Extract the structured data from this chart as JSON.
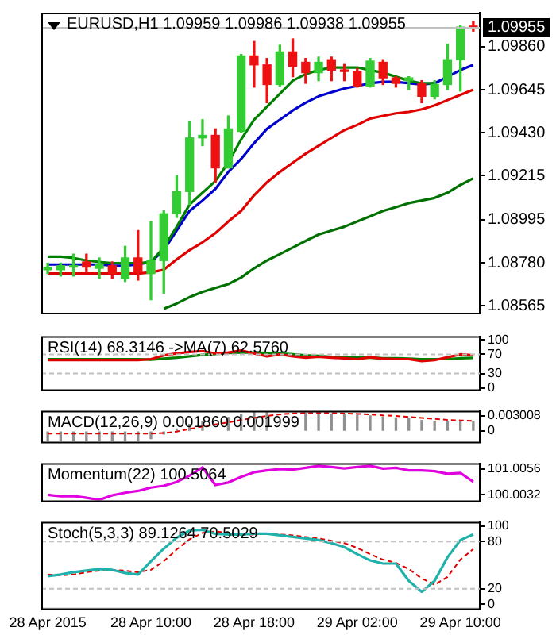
{
  "chart_data": [
    {
      "type": "candlestick",
      "title": "EURUSD,H1 1.09959 1.09986 1.09938 1.09955",
      "ohlc": [
        [
          1.08745,
          1.08778,
          1.08726,
          1.08758
        ],
        [
          1.08745,
          1.08778,
          1.08713,
          1.08765
        ],
        [
          1.08758,
          1.08823,
          1.08713,
          1.08765
        ],
        [
          1.08784,
          1.08823,
          1.08732,
          1.08758
        ],
        [
          1.08752,
          1.08804,
          1.087,
          1.08771
        ],
        [
          1.08765,
          1.08784,
          1.087,
          1.08726
        ],
        [
          1.087,
          1.08862,
          1.08686,
          1.08804
        ],
        [
          1.08804,
          1.08941,
          1.08693,
          1.08732
        ],
        [
          1.08726,
          1.08986,
          1.08595,
          1.08791
        ],
        [
          1.08791,
          1.09039,
          1.08628,
          1.09025
        ],
        [
          1.09025,
          1.09215,
          1.09006,
          1.09136
        ],
        [
          1.09136,
          1.09488,
          1.09071,
          1.09404
        ],
        [
          1.09404,
          1.09495,
          1.09365,
          1.09417
        ],
        [
          1.09417,
          1.09449,
          1.09182,
          1.09254
        ],
        [
          1.09254,
          1.09514,
          1.09254,
          1.09449
        ],
        [
          1.09436,
          1.09821,
          1.0943,
          1.09814
        ],
        [
          1.09814,
          1.09886,
          1.09658,
          1.09769
        ],
        [
          1.09769,
          1.09801,
          1.0958,
          1.09671
        ],
        [
          1.09671,
          1.09867,
          1.09664,
          1.09834
        ],
        [
          1.09834,
          1.09899,
          1.0971,
          1.09762
        ],
        [
          1.09782,
          1.09801,
          1.09677,
          1.0973
        ],
        [
          1.0973,
          1.09808,
          1.0969,
          1.09782
        ],
        [
          1.09795,
          1.09808,
          1.0969,
          1.09743
        ],
        [
          1.09743,
          1.09775,
          1.0969,
          1.09736
        ],
        [
          1.09736,
          1.0975,
          1.09658,
          1.09664
        ],
        [
          1.09664,
          1.09801,
          1.09658,
          1.09788
        ],
        [
          1.09782,
          1.09795,
          1.09671,
          1.09704
        ],
        [
          1.09704,
          1.0971,
          1.09658,
          1.09677
        ],
        [
          1.0969,
          1.0971,
          1.09645,
          1.09704
        ],
        [
          1.09677,
          1.0969,
          1.0958,
          1.09612
        ],
        [
          1.09612,
          1.0969,
          1.09599,
          1.09671
        ],
        [
          1.09671,
          1.09873,
          1.09645,
          1.09795
        ],
        [
          1.09795,
          1.09964,
          1.09638,
          1.09958
        ],
        [
          1.09959,
          1.09986,
          1.09938,
          1.09955
        ]
      ],
      "colors": [
        "#33cc33",
        "#33cc33",
        "#33cc33",
        "#ee1111",
        "#33cc33",
        "#ee1111",
        "#33cc33",
        "#ee1111",
        "#33cc33",
        "#33cc33",
        "#33cc33",
        "#33cc33",
        "#33cc33",
        "#ee1111",
        "#33cc33",
        "#33cc33",
        "#ee1111",
        "#ee1111",
        "#33cc33",
        "#ee1111",
        "#ee1111",
        "#33cc33",
        "#ee1111",
        "#ee1111",
        "#ee1111",
        "#33cc33",
        "#ee1111",
        "#ee1111",
        "#33cc33",
        "#ee1111",
        "#33cc33",
        "#33cc33",
        "#33cc33",
        "#ee1111"
      ],
      "series": [
        {
          "type": "line",
          "color": "#008000",
          "values": [
            1.0881,
            1.0881,
            1.08804,
            1.08791,
            1.08784,
            1.08778,
            1.08778,
            1.08778,
            1.08784,
            1.08856,
            1.0896,
            1.09071,
            1.0913,
            1.09188,
            1.0928,
            1.09397,
            1.09495,
            1.0956,
            1.09625,
            1.0969,
            1.09723,
            1.09743,
            1.09756,
            1.09756,
            1.09756,
            1.09743,
            1.0973,
            1.0971,
            1.0969,
            1.09677,
            1.09677,
            null,
            null,
            null
          ]
        },
        {
          "type": "line",
          "color": "#0000cc",
          "values": [
            1.08771,
            1.08771,
            1.08771,
            1.08771,
            1.08771,
            1.08765,
            1.08765,
            1.08771,
            1.08784,
            1.08843,
            1.08941,
            1.09039,
            1.09091,
            1.09149,
            1.09234,
            1.09299,
            1.09378,
            1.09449,
            1.09495,
            1.09541,
            1.0958,
            1.09612,
            1.09632,
            1.09651,
            1.09664,
            1.09677,
            1.09684,
            1.09684,
            1.09677,
            1.09671,
            1.09677,
            1.0971,
            1.09743,
            1.09769
          ]
        },
        {
          "type": "line",
          "color": "#e00000",
          "values": [
            1.08726,
            1.08726,
            1.08726,
            1.08726,
            1.08726,
            1.08726,
            1.08726,
            1.08726,
            1.08732,
            1.08745,
            1.08797,
            1.08843,
            1.08882,
            1.08928,
            1.08986,
            1.09039,
            1.09117,
            1.09182,
            1.09234,
            1.0928,
            1.09325,
            1.09365,
            1.09404,
            1.09443,
            1.09469,
            1.09501,
            1.09514,
            1.09527,
            1.09534,
            1.09547,
            1.09567,
            1.09593,
            1.09619,
            1.09645
          ]
        },
        {
          "type": "line",
          "color": "#007000",
          "values": [
            null,
            null,
            null,
            null,
            null,
            null,
            null,
            null,
            null,
            1.0855,
            1.08576,
            1.08608,
            1.08634,
            1.08654,
            1.08673,
            1.08706,
            1.08752,
            1.08791,
            1.08823,
            1.08856,
            1.08889,
            1.08921,
            1.08941,
            1.0896,
            1.08986,
            1.09012,
            1.09039,
            1.09058,
            1.09078,
            1.09091,
            1.09104,
            1.0913,
            1.09169,
            1.09202
          ]
        }
      ],
      "ylim": [
        1.0853,
        1.1003
      ],
      "yticks": [
        1.08565,
        {
          "value": 1.0878,
          "label": "1.08780"
        },
        1.08995,
        1.09215,
        {
          "value": 1.0943,
          "label": "1.09430"
        },
        1.09645,
        {
          "value": 1.0986,
          "label": "1.09860"
        }
      ],
      "ref_lines": [
        {
          "axis": "y",
          "value": 1.09955,
          "label": "1.09955",
          "color": "#c0c0c0"
        }
      ],
      "tick_labels": "y",
      "legend": false,
      "grid": false,
      "marker": "none"
    },
    {
      "type": "line",
      "title": "RSI(14) 68.3146 ->MA(7) 62.5760",
      "series": [
        {
          "color": "#e00000",
          "values": [
            58,
            58,
            58,
            58,
            58,
            58,
            58,
            58,
            60,
            68,
            72,
            75,
            77,
            72,
            74,
            78,
            72,
            66,
            70,
            66,
            63,
            65,
            63,
            62,
            60,
            64,
            61,
            60,
            60,
            56,
            58,
            64,
            70,
            68.3146
          ]
        },
        {
          "color": "#008000",
          "values": [
            60,
            60,
            60,
            60,
            60,
            60,
            60,
            60,
            59,
            61,
            63,
            66,
            69,
            71,
            73,
            74,
            74,
            73,
            72,
            70,
            68,
            67,
            65,
            64,
            63,
            63,
            62,
            62,
            61,
            60,
            60,
            60,
            62,
            62.576
          ]
        }
      ],
      "ylim": [
        -3,
        108
      ],
      "yticks": [
        0,
        30,
        70,
        100
      ],
      "ref_lines": [
        {
          "axis": "y",
          "value": 30,
          "color": "#c0c0c0",
          "line_style": "dashed"
        },
        {
          "axis": "y",
          "value": 70,
          "color": "#c0c0c0",
          "line_style": "dashed"
        }
      ],
      "tick_labels": "y",
      "legend": false,
      "grid": false,
      "marker": "none"
    },
    {
      "type": "bar",
      "title": "MACD(12,26,9) 0.001860 0.001999",
      "series": [
        {
          "type": "bar",
          "color": "#909090",
          "values": [
            -0.0019,
            -0.0019,
            -0.0019,
            -0.0019,
            -0.0019,
            -0.0019,
            -0.0019,
            -0.0019,
            -0.0015,
            -0.0006,
            0.0004,
            0.0013,
            0.0019,
            null,
            0.0027,
            0.0033,
            0.0037,
            0.0037,
            null,
            null,
            0.0036,
            0.0035,
            0.0034,
            0.0033,
            0.0031,
            0.003,
            0.0028,
            0.0026,
            0.0024,
            0.0021,
            0.0019,
            0.0018,
            0.0018,
            0.00186
          ]
        },
        {
          "type": "line",
          "color": "#e00000",
          "line_style": "dashed",
          "values": [
            -0.0005,
            -0.0005,
            -0.0005,
            -0.0005,
            -0.0005,
            -0.0005,
            -0.0005,
            -0.0005,
            -0.0005,
            -0.0004,
            -0.0001,
            0.0004,
            0.0009,
            0.0013,
            0.0017,
            0.0022,
            0.0026,
            0.003,
            0.0033,
            0.0035,
            0.0036,
            0.0036,
            0.0036,
            0.0035,
            0.0034,
            0.0033,
            0.0031,
            0.003,
            0.0028,
            0.0026,
            0.0024,
            0.0022,
            0.0021,
            0.001999
          ]
        }
      ],
      "ylim": [
        -0.0021,
        0.004
      ],
      "yticks": [
        0,
        0.003008
      ],
      "tick_labels": "y",
      "legend": false,
      "grid": false,
      "marker": "none"
    },
    {
      "type": "line",
      "title": "Momentum(22) 100.5064",
      "series": [
        {
          "color": "#e000e0",
          "values": [
            100.0,
            99.94,
            99.95,
            99.88,
            99.8,
            99.98,
            100.08,
            100.15,
            100.28,
            100.35,
            100.5,
            100.75,
            101.07,
            100.38,
            100.48,
            100.7,
            100.88,
            100.95,
            101.0,
            100.98,
            101.05,
            101.13,
            101.08,
            101.03,
            101.08,
            101.13,
            101.02,
            101.05,
            100.95,
            100.95,
            100.92,
            100.82,
            100.85,
            100.5064
          ]
        }
      ],
      "ylim": [
        99.78,
        101.23
      ],
      "yticks": [
        100.0032,
        101.0056
      ],
      "tick_labels": "y",
      "legend": false,
      "grid": false,
      "marker": "none"
    },
    {
      "type": "line",
      "title": "Stoch(5,3,3) 89.1264 70.5029",
      "categories": [
        "28 Apr 2015",
        null,
        null,
        null,
        null,
        null,
        null,
        null,
        "28 Apr 10:00",
        null,
        null,
        null,
        null,
        null,
        null,
        null,
        "28 Apr 18:00",
        null,
        null,
        null,
        null,
        null,
        null,
        null,
        "29 Apr 02:00",
        null,
        null,
        null,
        null,
        null,
        null,
        null,
        "29 Apr 10:00",
        null
      ],
      "series": [
        {
          "color": "#20b2aa",
          "values": [
            36,
            38,
            41,
            43,
            45,
            44,
            40,
            38,
            55,
            71,
            85,
            94,
            95,
            90,
            89,
            89,
            90,
            90,
            88,
            86,
            84,
            82,
            78,
            73,
            64,
            56,
            52,
            52,
            30,
            16,
            30,
            60,
            82,
            89.1264
          ]
        },
        {
          "color": "#e00000",
          "line_style": "dashed",
          "values": [
            38,
            37,
            38,
            41,
            43,
            44,
            43,
            41,
            44,
            55,
            70,
            83,
            91,
            93,
            91,
            89,
            89,
            90,
            89,
            88,
            86,
            84,
            81,
            78,
            72,
            64,
            57,
            53,
            45,
            33,
            25,
            35,
            57,
            70.5029
          ]
        }
      ],
      "ylim": [
        -5,
        105
      ],
      "yticks": [
        0,
        20,
        80,
        100
      ],
      "ref_lines": [
        {
          "axis": "y",
          "value": 20,
          "color": "#c0c0c0",
          "line_style": "dashed"
        },
        {
          "axis": "y",
          "value": 80,
          "color": "#c0c0c0",
          "line_style": "dashed"
        }
      ],
      "legend": false,
      "grid": false,
      "marker": "none"
    }
  ]
}
